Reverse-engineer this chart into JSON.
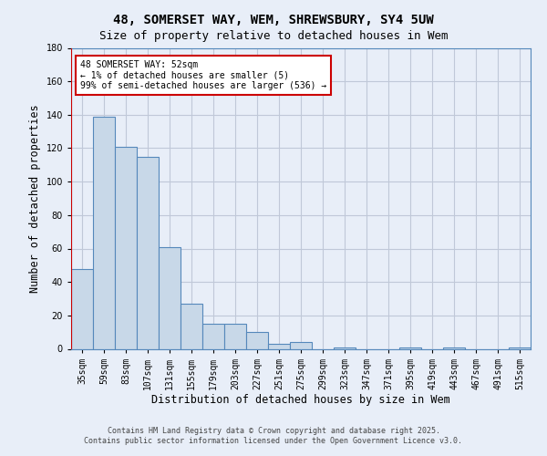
{
  "title_line1": "48, SOMERSET WAY, WEM, SHREWSBURY, SY4 5UW",
  "title_line2": "Size of property relative to detached houses in Wem",
  "xlabel": "Distribution of detached houses by size in Wem",
  "ylabel": "Number of detached properties",
  "categories": [
    "35sqm",
    "59sqm",
    "83sqm",
    "107sqm",
    "131sqm",
    "155sqm",
    "179sqm",
    "203sqm",
    "227sqm",
    "251sqm",
    "275sqm",
    "299sqm",
    "323sqm",
    "347sqm",
    "371sqm",
    "395sqm",
    "419sqm",
    "443sqm",
    "467sqm",
    "491sqm",
    "515sqm"
  ],
  "values": [
    48,
    139,
    121,
    115,
    61,
    27,
    15,
    15,
    10,
    3,
    4,
    0,
    1,
    0,
    0,
    1,
    0,
    1,
    0,
    0,
    1
  ],
  "bar_color": "#c8d8e8",
  "bar_edge_color": "#5588bb",
  "grid_color": "#c0c8d8",
  "background_color": "#e8eef8",
  "vline_color": "#cc0000",
  "annotation_text": "48 SOMERSET WAY: 52sqm\n← 1% of detached houses are smaller (5)\n99% of semi-detached houses are larger (536) →",
  "annotation_box_color": "#ffffff",
  "annotation_box_edge": "#cc0000",
  "ylim": [
    0,
    180
  ],
  "yticks": [
    0,
    20,
    40,
    60,
    80,
    100,
    120,
    140,
    160,
    180
  ],
  "footer_line1": "Contains HM Land Registry data © Crown copyright and database right 2025.",
  "footer_line2": "Contains public sector information licensed under the Open Government Licence v3.0.",
  "title_fontsize": 10,
  "subtitle_fontsize": 9,
  "tick_fontsize": 7,
  "ylabel_fontsize": 8.5,
  "xlabel_fontsize": 8.5,
  "annotation_fontsize": 7,
  "footer_fontsize": 6
}
